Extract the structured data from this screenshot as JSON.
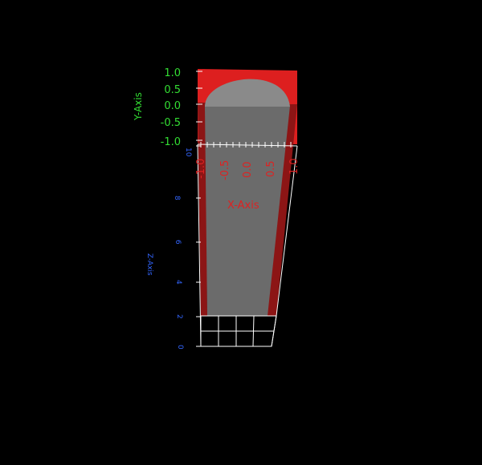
{
  "scene": {
    "background_color": "#000000",
    "y_axis": {
      "title": "Y-Axis",
      "color": "#33dd33",
      "ticks": [
        "1.0",
        "0.5",
        "0.0",
        "-0.5",
        "-1.0"
      ]
    },
    "x_axis": {
      "title": "X-Axis",
      "color": "#dd2222",
      "ticks": [
        "-1.0",
        "-0.5",
        "0.0",
        "0.5",
        "1.0"
      ]
    },
    "z_axis": {
      "title": "Z-Axis",
      "color": "#3366ff",
      "ticks": [
        "10",
        "8",
        "6",
        "4",
        "2",
        "0"
      ]
    },
    "shape_colors": {
      "red": "#dd1f1f",
      "dark_red": "#8c1515",
      "gray": "#6b6b6b",
      "light_gray": "#8a8a8a"
    }
  }
}
